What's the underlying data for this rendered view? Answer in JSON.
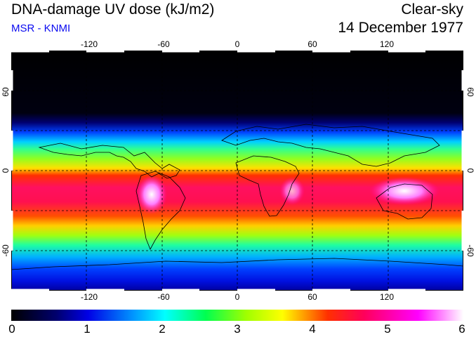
{
  "header": {
    "title": "DNA-damage UV dose (kJ/m2)",
    "source": "MSR - KNMI",
    "condition": "Clear-sky",
    "date": "14 December 1977"
  },
  "map": {
    "longitude_ticks": [
      "-120",
      "-60",
      "0",
      "60",
      "120"
    ],
    "latitude_ticks": [
      "60",
      "0",
      "-60"
    ]
  },
  "colorbar": {
    "labels": [
      "0",
      "1",
      "2",
      "3",
      "4",
      "5",
      "6"
    ],
    "range": [
      0,
      6
    ]
  },
  "colors": {
    "palette": [
      "#000000",
      "#0000c8",
      "#00a0ff",
      "#00ffff",
      "#00ff00",
      "#ffff00",
      "#ff0000",
      "#ff0064",
      "#ff00ff",
      "#ffffff"
    ]
  }
}
